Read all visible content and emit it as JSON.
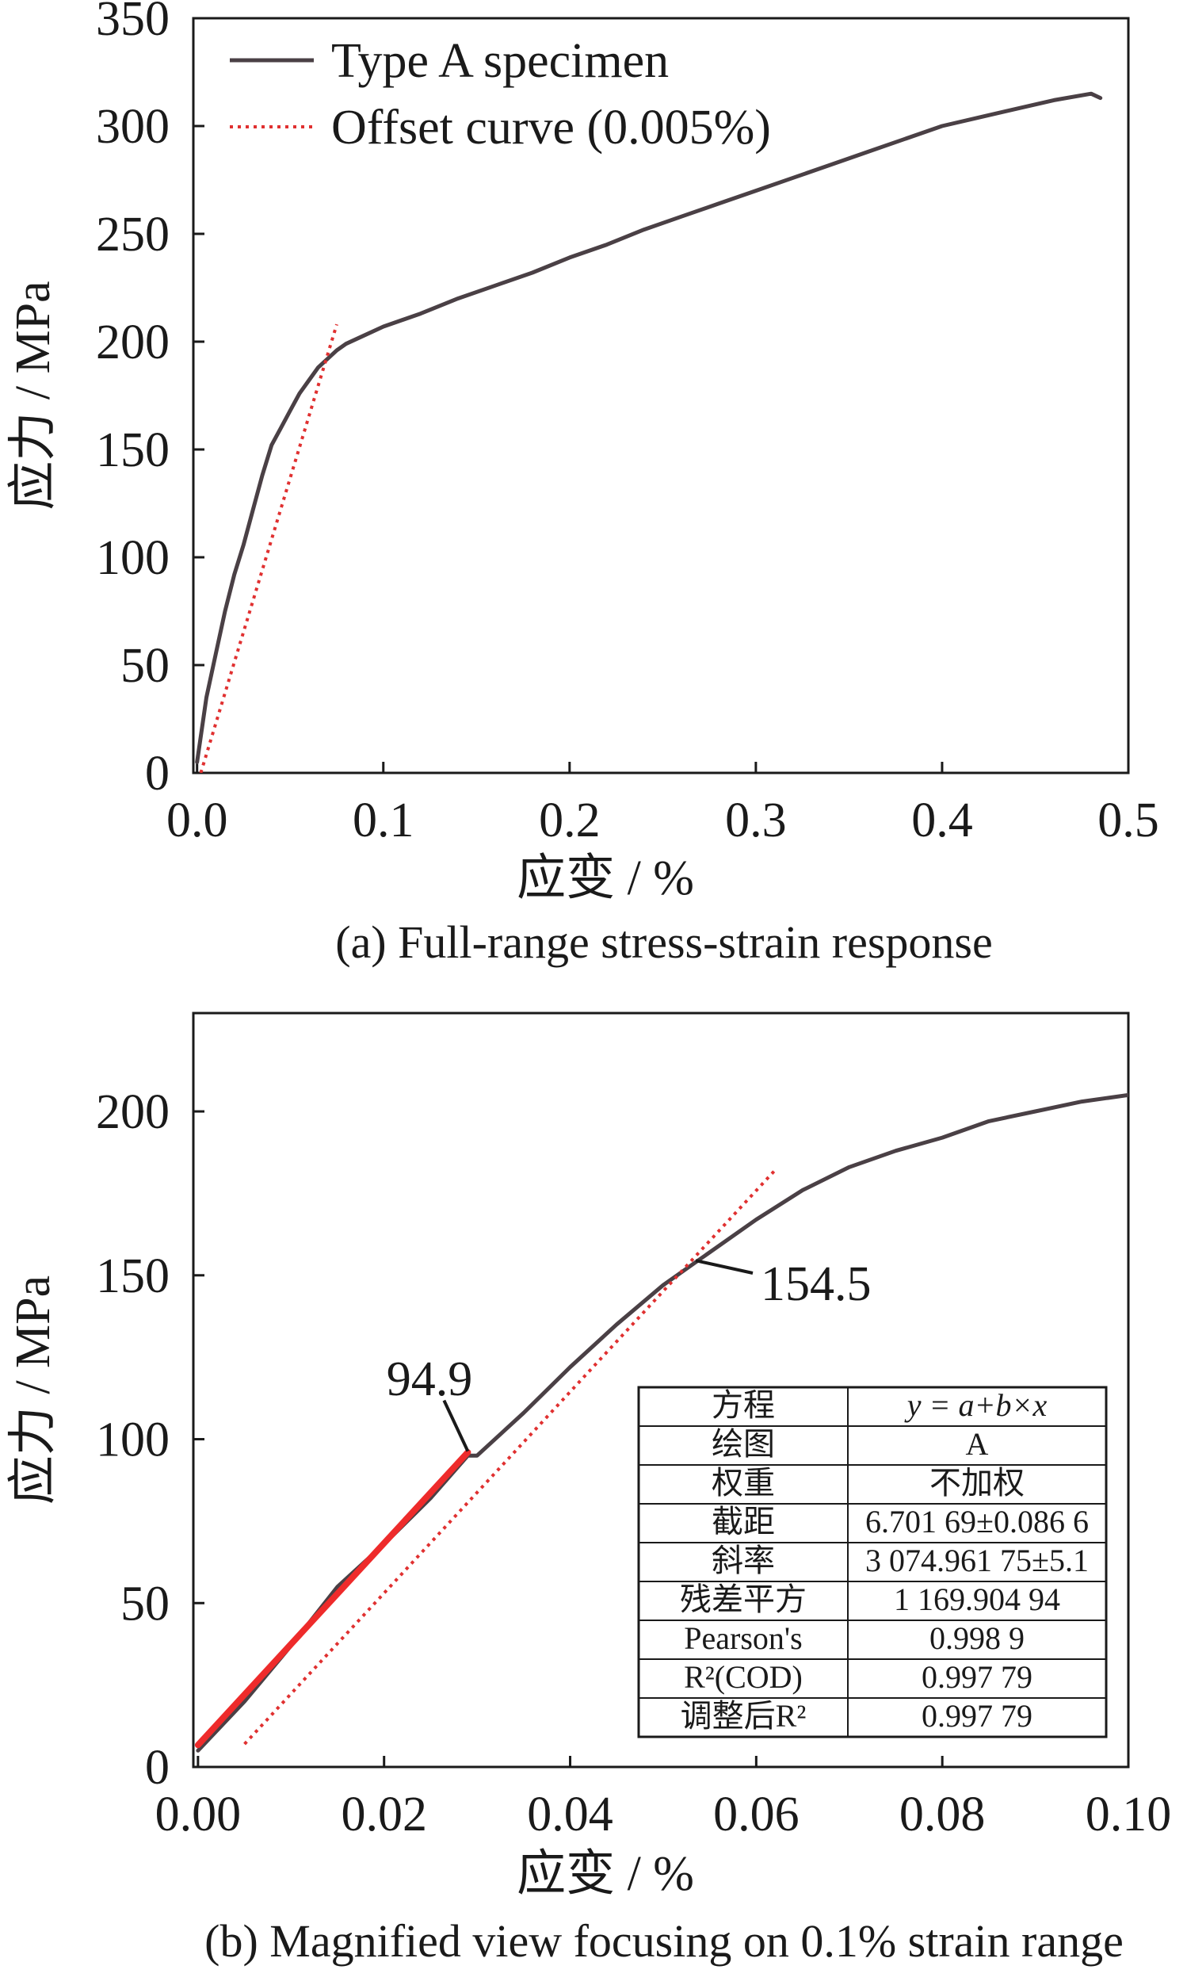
{
  "colors": {
    "curve": "#4a4045",
    "offset": "#e03030",
    "fit": "#ee2b2b",
    "axis": "#1a1a1a"
  },
  "chart_data": [
    {
      "type": "line",
      "caption": "(a) Full-range stress-strain response",
      "xlabel": "应变 / %",
      "ylabel": "应力 / MPa",
      "xlim": [
        -0.002,
        0.5
      ],
      "ylim": [
        0,
        350
      ],
      "x_ticks": [
        0.0,
        0.1,
        0.2,
        0.3,
        0.4,
        0.5
      ],
      "x_tick_labels": [
        "0.0",
        "0.1",
        "0.2",
        "0.3",
        "0.4",
        "0.5"
      ],
      "y_ticks": [
        0,
        50,
        100,
        150,
        200,
        250,
        300,
        350
      ],
      "y_tick_labels": [
        "0",
        "50",
        "100",
        "150",
        "200",
        "250",
        "300",
        "350"
      ],
      "grid": false,
      "legend_position": "top-left",
      "series": [
        {
          "name": "Type A specimen",
          "style": "solid",
          "x": [
            0.0,
            0.005,
            0.01,
            0.015,
            0.02,
            0.025,
            0.03,
            0.035,
            0.04,
            0.045,
            0.05,
            0.055,
            0.06,
            0.065,
            0.07,
            0.075,
            0.08,
            0.09,
            0.1,
            0.12,
            0.14,
            0.16,
            0.18,
            0.2,
            0.22,
            0.24,
            0.26,
            0.28,
            0.3,
            0.32,
            0.34,
            0.36,
            0.38,
            0.4,
            0.42,
            0.44,
            0.46,
            0.48,
            0.485
          ],
          "y": [
            5,
            35,
            55,
            75,
            92,
            106,
            122,
            138,
            152,
            160,
            168,
            176,
            182,
            188,
            192,
            196,
            199,
            203,
            207,
            213,
            220,
            226,
            232,
            239,
            245,
            252,
            258,
            264,
            270,
            276,
            282,
            288,
            294,
            300,
            304,
            308,
            312,
            315,
            313
          ]
        },
        {
          "name": "Offset curve (0.005%)",
          "style": "dotted",
          "x": [
            0.002,
            0.075
          ],
          "y": [
            0,
            208
          ]
        }
      ]
    },
    {
      "type": "line",
      "caption": "(b) Magnified view focusing on 0.1% strain range",
      "xlabel": "应变 / %",
      "ylabel": "应力 / MPa",
      "xlim": [
        -0.0005,
        0.1
      ],
      "ylim": [
        0,
        230
      ],
      "x_ticks": [
        0.0,
        0.02,
        0.04,
        0.06,
        0.08,
        0.1
      ],
      "x_tick_labels": [
        "0.00",
        "0.02",
        "0.04",
        "0.06",
        "0.08",
        "0.10"
      ],
      "y_ticks": [
        0,
        50,
        100,
        150,
        200
      ],
      "y_tick_labels": [
        "0",
        "50",
        "100",
        "150",
        "200"
      ],
      "grid": false,
      "series": [
        {
          "style": "solid",
          "x": [
            0.0,
            0.005,
            0.01,
            0.015,
            0.02,
            0.025,
            0.029,
            0.03,
            0.035,
            0.04,
            0.045,
            0.05,
            0.055,
            0.06,
            0.065,
            0.07,
            0.075,
            0.08,
            0.085,
            0.09,
            0.095,
            0.1
          ],
          "y": [
            5,
            20,
            37,
            55,
            68,
            82,
            95,
            95,
            108,
            122,
            135,
            147,
            157,
            167,
            176,
            183,
            188,
            192,
            197,
            200,
            203,
            205
          ]
        },
        {
          "style": "dotted",
          "x": [
            0.005,
            0.062
          ],
          "y": [
            7,
            182
          ]
        },
        {
          "style": "fit",
          "x": [
            0.0,
            0.029
          ],
          "y": [
            6.7,
            96
          ]
        }
      ],
      "annotations": [
        {
          "text": "94.9",
          "x": 0.029,
          "y": 94.9
        },
        {
          "text": "154.5",
          "x": 0.0535,
          "y": 154.5
        }
      ],
      "table": {
        "rows": [
          [
            "方程",
            "y = a+b×x"
          ],
          [
            "绘图",
            "A"
          ],
          [
            "权重",
            "不加权"
          ],
          [
            "截距",
            "6.701 69±0.086 6"
          ],
          [
            "斜率",
            "3 074.961 75±5.1"
          ],
          [
            "残差平方",
            "1 169.904 94"
          ],
          [
            "Pearson's",
            "0.998 9"
          ],
          [
            "R²(COD)",
            "0.997 79"
          ],
          [
            "调整后R²",
            "0.997 79"
          ]
        ]
      }
    }
  ]
}
